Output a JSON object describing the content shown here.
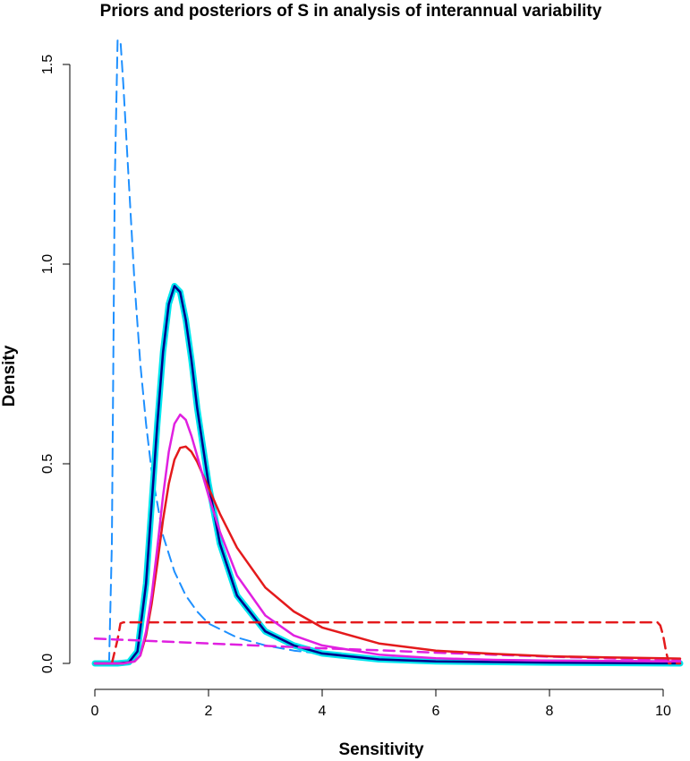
{
  "chart_data": {
    "type": "line",
    "title": "Priors and posteriors of S in analysis of interannual variability",
    "xlabel": "Sensitivity",
    "ylabel": "Density",
    "xlim": [
      -0.2,
      10.4
    ],
    "ylim": [
      -0.02,
      1.56
    ],
    "grid": false,
    "legend": "none",
    "x_ticks": [
      0,
      2,
      4,
      6,
      8,
      10
    ],
    "x_tick_labels": [
      "0",
      "2",
      "4",
      "6",
      "8",
      "10"
    ],
    "y_ticks": [
      0.0,
      0.5,
      1.0,
      1.5
    ],
    "y_tick_labels": [
      "0.0",
      "0.5",
      "1.0",
      "1.5"
    ],
    "series": [
      {
        "color": "#1e90ff",
        "dash": "dashed",
        "width": 2,
        "x": [
          0.25,
          0.3,
          0.35,
          0.4,
          0.45,
          0.5,
          0.6,
          0.7,
          0.8,
          0.9,
          1.0,
          1.2,
          1.4,
          1.6,
          1.8,
          2.0,
          2.5,
          3.0,
          3.5,
          4.0,
          5.0,
          6.0
        ],
        "y": [
          0.0,
          0.3,
          1.2,
          1.56,
          1.56,
          1.45,
          1.2,
          0.95,
          0.75,
          0.6,
          0.48,
          0.32,
          0.23,
          0.17,
          0.13,
          0.1,
          0.065,
          0.045,
          0.032,
          0.024,
          0.014,
          0.009
        ]
      },
      {
        "color": "#00e5ee",
        "dash": "solid",
        "width": 7,
        "x": [
          0.0,
          0.4,
          0.6,
          0.75,
          0.9,
          1.0,
          1.1,
          1.2,
          1.3,
          1.4,
          1.5,
          1.6,
          1.7,
          1.8,
          2.0,
          2.2,
          2.5,
          3.0,
          3.5,
          4.0,
          5.0,
          6.0,
          8.0,
          10.3
        ],
        "y": [
          0.0,
          0.0,
          0.003,
          0.03,
          0.2,
          0.4,
          0.6,
          0.78,
          0.9,
          0.945,
          0.93,
          0.86,
          0.76,
          0.64,
          0.45,
          0.3,
          0.17,
          0.08,
          0.045,
          0.025,
          0.01,
          0.005,
          0.002,
          0.0
        ]
      },
      {
        "color": "#00008b",
        "dash": "solid",
        "width": 2.5,
        "x": [
          0.0,
          0.4,
          0.6,
          0.75,
          0.9,
          1.0,
          1.1,
          1.2,
          1.3,
          1.4,
          1.5,
          1.6,
          1.7,
          1.8,
          2.0,
          2.2,
          2.5,
          3.0,
          3.5,
          4.0,
          5.0,
          6.0,
          8.0,
          10.3
        ],
        "y": [
          0.0,
          0.0,
          0.003,
          0.03,
          0.2,
          0.4,
          0.6,
          0.78,
          0.9,
          0.945,
          0.93,
          0.86,
          0.76,
          0.64,
          0.45,
          0.3,
          0.17,
          0.08,
          0.045,
          0.025,
          0.01,
          0.005,
          0.002,
          0.0
        ]
      },
      {
        "color": "#e41a1c",
        "dash": "dashed",
        "width": 2.5,
        "x": [
          0.0,
          0.3,
          0.4,
          0.45,
          0.5,
          9.9,
          9.95,
          10.0,
          10.05,
          10.1,
          10.3
        ],
        "y": [
          0.0,
          0.0,
          0.06,
          0.1,
          0.103,
          0.103,
          0.095,
          0.07,
          0.03,
          0.0,
          0.0
        ]
      },
      {
        "color": "#e020e0",
        "dash": "dashed",
        "width": 2.5,
        "x": [
          0.0,
          1.0,
          2.0,
          3.0,
          4.0,
          5.0,
          6.0,
          7.0,
          8.0,
          9.0,
          10.0,
          10.3
        ],
        "y": [
          0.062,
          0.056,
          0.05,
          0.044,
          0.038,
          0.033,
          0.027,
          0.022,
          0.017,
          0.013,
          0.009,
          0.008
        ]
      },
      {
        "color": "#e41a1c",
        "dash": "solid",
        "width": 2.5,
        "x": [
          0.0,
          0.5,
          0.7,
          0.8,
          0.9,
          1.0,
          1.1,
          1.2,
          1.3,
          1.4,
          1.5,
          1.6,
          1.7,
          1.8,
          2.0,
          2.2,
          2.5,
          3.0,
          3.5,
          4.0,
          5.0,
          6.0,
          7.0,
          8.0,
          9.0,
          10.0,
          10.3
        ],
        "y": [
          0.0,
          0.0,
          0.005,
          0.02,
          0.07,
          0.15,
          0.25,
          0.36,
          0.45,
          0.51,
          0.54,
          0.543,
          0.53,
          0.505,
          0.44,
          0.375,
          0.29,
          0.19,
          0.13,
          0.09,
          0.05,
          0.032,
          0.024,
          0.018,
          0.015,
          0.013,
          0.012
        ]
      },
      {
        "color": "#e020e0",
        "dash": "solid",
        "width": 2.5,
        "x": [
          0.0,
          0.5,
          0.7,
          0.8,
          0.9,
          1.0,
          1.1,
          1.2,
          1.3,
          1.4,
          1.5,
          1.6,
          1.7,
          1.8,
          2.0,
          2.2,
          2.5,
          3.0,
          3.5,
          4.0,
          5.0,
          6.0,
          7.0,
          8.0,
          9.0,
          10.0,
          10.3
        ],
        "y": [
          0.0,
          0.0,
          0.005,
          0.02,
          0.08,
          0.17,
          0.29,
          0.42,
          0.53,
          0.6,
          0.623,
          0.61,
          0.57,
          0.52,
          0.42,
          0.33,
          0.22,
          0.12,
          0.07,
          0.045,
          0.022,
          0.013,
          0.009,
          0.007,
          0.006,
          0.005,
          0.005
        ]
      }
    ]
  }
}
